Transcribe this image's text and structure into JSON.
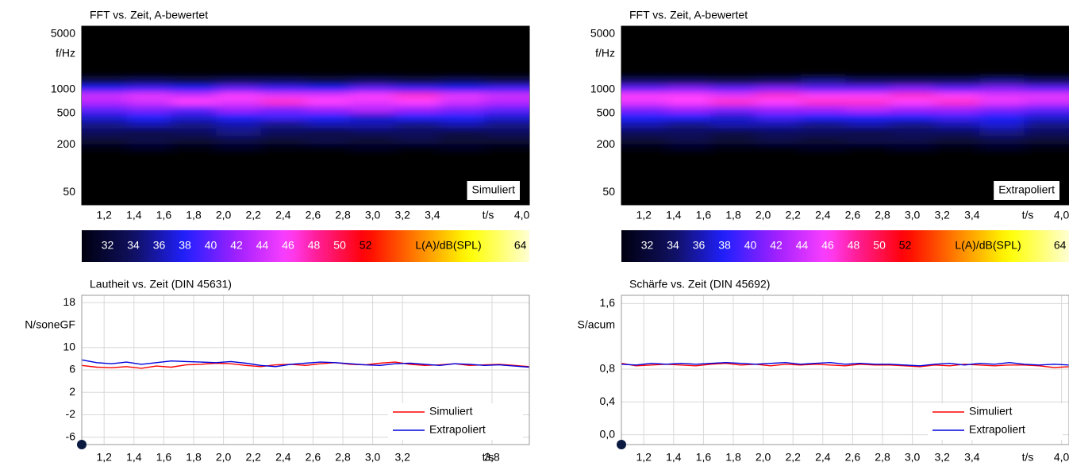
{
  "chart_data": [
    {
      "type": "heatmap",
      "title": "FFT vs. Zeit, A-bewertet",
      "y_label": "f/Hz",
      "x_label": "t/s",
      "annotation": "Simuliert",
      "log_y": true,
      "ylim": [
        35,
        6300
      ],
      "yticks": [
        5000,
        1000,
        500,
        200,
        50
      ],
      "xlim": [
        1.05,
        4.05
      ],
      "xticks": [
        {
          "value": 1.2,
          "label": "1,2"
        },
        {
          "value": 1.4,
          "label": "1,4"
        },
        {
          "value": 1.6,
          "label": "1,6"
        },
        {
          "value": 1.8,
          "label": "1,8"
        },
        {
          "value": 2.0,
          "label": "2,0"
        },
        {
          "value": 2.2,
          "label": "2,2"
        },
        {
          "value": 2.4,
          "label": "2,4"
        },
        {
          "value": 2.6,
          "label": "2,6"
        },
        {
          "value": 2.8,
          "label": "2,8"
        },
        {
          "value": 3.0,
          "label": "3,0"
        },
        {
          "value": 3.2,
          "label": "3,2"
        },
        {
          "value": 3.4,
          "label": "3,4"
        },
        {
          "value": 4.0,
          "label": "4,0"
        }
      ],
      "x": [
        1.2,
        1.5,
        1.8,
        2.1,
        2.4,
        2.7,
        3.0,
        3.3,
        3.6,
        3.9
      ],
      "y": [
        1300,
        1000,
        850,
        700,
        560,
        450,
        360,
        290,
        230,
        180
      ],
      "values": [
        [
          33,
          34,
          33,
          34,
          34,
          33,
          34,
          33,
          34,
          33
        ],
        [
          38,
          39,
          38,
          40,
          39,
          38,
          40,
          39,
          38,
          39
        ],
        [
          44,
          45,
          44,
          46,
          45,
          45,
          46,
          47,
          45,
          44
        ],
        [
          43,
          44,
          46,
          45,
          47,
          46,
          45,
          46,
          44,
          43
        ],
        [
          40,
          41,
          40,
          42,
          41,
          42,
          43,
          42,
          41,
          40
        ],
        [
          37,
          38,
          37,
          38,
          39,
          38,
          37,
          38,
          38,
          37
        ],
        [
          35,
          36,
          35,
          36,
          35,
          36,
          36,
          35,
          36,
          35
        ],
        [
          34,
          33,
          34,
          35,
          34,
          33,
          34,
          34,
          33,
          34
        ],
        [
          32,
          33,
          32,
          33,
          32,
          33,
          32,
          33,
          32,
          32
        ],
        [
          30,
          31,
          30,
          31,
          30,
          30,
          31,
          30,
          31,
          30
        ]
      ],
      "colorbar": {
        "lim": [
          30,
          64.7
        ],
        "ticks": [
          32,
          34,
          36,
          38,
          40,
          42,
          44,
          46,
          48,
          50,
          52,
          64
        ],
        "label": "L(A)/dB(SPL)"
      }
    },
    {
      "type": "heatmap",
      "title": "FFT vs. Zeit, A-bewertet",
      "y_label": "f/Hz",
      "x_label": "t/s",
      "annotation": "Extrapoliert",
      "log_y": true,
      "ylim": [
        35,
        6300
      ],
      "yticks": [
        5000,
        1000,
        500,
        200,
        50
      ],
      "xlim": [
        1.05,
        4.05
      ],
      "xticks": [
        {
          "value": 1.2,
          "label": "1,2"
        },
        {
          "value": 1.4,
          "label": "1,4"
        },
        {
          "value": 1.6,
          "label": "1,6"
        },
        {
          "value": 1.8,
          "label": "1,8"
        },
        {
          "value": 2.0,
          "label": "2,0"
        },
        {
          "value": 2.2,
          "label": "2,2"
        },
        {
          "value": 2.4,
          "label": "2,4"
        },
        {
          "value": 2.6,
          "label": "2,6"
        },
        {
          "value": 2.8,
          "label": "2,8"
        },
        {
          "value": 3.0,
          "label": "3,0"
        },
        {
          "value": 3.2,
          "label": "3,2"
        },
        {
          "value": 3.4,
          "label": "3,4"
        },
        {
          "value": 4.0,
          "label": "4,0"
        }
      ],
      "x": [
        1.2,
        1.5,
        1.8,
        2.1,
        2.4,
        2.7,
        3.0,
        3.3,
        3.6,
        3.9
      ],
      "y": [
        1300,
        1000,
        850,
        700,
        560,
        450,
        360,
        290,
        230,
        180
      ],
      "values": [
        [
          34,
          34,
          33,
          34,
          35,
          34,
          34,
          34,
          35,
          34
        ],
        [
          40,
          41,
          40,
          41,
          40,
          40,
          41,
          40,
          41,
          40
        ],
        [
          46,
          46,
          45,
          47,
          46,
          46,
          47,
          46,
          45,
          45
        ],
        [
          45,
          46,
          47,
          46,
          47,
          47,
          46,
          47,
          45,
          44
        ],
        [
          41,
          42,
          41,
          42,
          42,
          43,
          42,
          42,
          41,
          40
        ],
        [
          38,
          38,
          37,
          39,
          38,
          38,
          38,
          39,
          38,
          37
        ],
        [
          36,
          35,
          36,
          36,
          35,
          36,
          35,
          36,
          37,
          35
        ],
        [
          34,
          34,
          33,
          34,
          34,
          33,
          34,
          34,
          35,
          34
        ],
        [
          32,
          33,
          32,
          33,
          32,
          33,
          33,
          32,
          33,
          32
        ],
        [
          30,
          31,
          30,
          30,
          31,
          30,
          31,
          30,
          31,
          30
        ]
      ],
      "colorbar": {
        "lim": [
          30,
          64.7
        ],
        "ticks": [
          32,
          34,
          36,
          38,
          40,
          42,
          44,
          46,
          48,
          50,
          52,
          64
        ],
        "label": "L(A)/dB(SPL)"
      }
    },
    {
      "type": "line",
      "title": "Lautheit vs. Zeit (DIN 45631)",
      "y_label": "N/soneGF",
      "x_label": "t/s",
      "ylim": [
        -7.3,
        19.3
      ],
      "yticks": [
        18,
        10,
        6,
        2,
        -2,
        -6
      ],
      "grid": true,
      "legend": "lower right",
      "xlim": [
        1.05,
        4.05
      ],
      "xticks": [
        {
          "value": 1.2,
          "label": "1,2"
        },
        {
          "value": 1.4,
          "label": "1,4"
        },
        {
          "value": 1.6,
          "label": "1,6"
        },
        {
          "value": 1.8,
          "label": "1,8"
        },
        {
          "value": 2.0,
          "label": "2,0"
        },
        {
          "value": 2.2,
          "label": "2,2"
        },
        {
          "value": 2.4,
          "label": "2,4"
        },
        {
          "value": 2.6,
          "label": "2,6"
        },
        {
          "value": 2.8,
          "label": "2,8"
        },
        {
          "value": 3.0,
          "label": "3,0"
        },
        {
          "value": 3.2,
          "label": "3,2"
        },
        {
          "value": 3.8,
          "label": "3,8"
        }
      ],
      "x": [
        1.05,
        1.15,
        1.25,
        1.35,
        1.45,
        1.55,
        1.65,
        1.75,
        1.85,
        1.95,
        2.05,
        2.15,
        2.25,
        2.35,
        2.45,
        2.55,
        2.65,
        2.75,
        2.85,
        2.95,
        3.05,
        3.15,
        3.25,
        3.35,
        3.45,
        3.55,
        3.65,
        3.75,
        3.85,
        3.95,
        4.05
      ],
      "series": [
        {
          "name": "Simuliert",
          "color": "#ff0000",
          "values": [
            6.8,
            6.5,
            6.4,
            6.6,
            6.3,
            6.7,
            6.5,
            6.9,
            7.0,
            7.2,
            7.1,
            6.8,
            6.6,
            6.9,
            7.0,
            6.8,
            7.1,
            7.3,
            7.0,
            6.9,
            7.2,
            7.4,
            7.0,
            6.8,
            6.9,
            7.1,
            6.8,
            6.9,
            7.0,
            6.8,
            6.6
          ]
        },
        {
          "name": "Extrapoliert",
          "color": "#0000dd",
          "values": [
            7.8,
            7.3,
            7.1,
            7.4,
            7.0,
            7.3,
            7.6,
            7.5,
            7.4,
            7.3,
            7.5,
            7.2,
            6.8,
            6.6,
            7.0,
            7.2,
            7.4,
            7.3,
            7.1,
            6.9,
            6.8,
            7.1,
            7.2,
            7.0,
            6.8,
            7.1,
            7.0,
            6.8,
            6.9,
            6.7,
            6.5
          ]
        }
      ]
    },
    {
      "type": "line",
      "title": "Schärfe vs. Zeit (DIN 45692)",
      "y_label": "S/acum",
      "x_label": "t/s",
      "ylim": [
        -0.12,
        1.7
      ],
      "yticks": [
        {
          "value": 1.6,
          "label": "1,6"
        },
        {
          "value": 0.8,
          "label": "0,8"
        },
        {
          "value": 0.4,
          "label": "0,4"
        },
        {
          "value": 0.0,
          "label": "0,0"
        }
      ],
      "grid": true,
      "legend": "lower right",
      "xlim": [
        1.05,
        4.05
      ],
      "xticks": [
        {
          "value": 1.2,
          "label": "1,2"
        },
        {
          "value": 1.4,
          "label": "1,4"
        },
        {
          "value": 1.6,
          "label": "1,6"
        },
        {
          "value": 1.8,
          "label": "1,8"
        },
        {
          "value": 2.0,
          "label": "2,0"
        },
        {
          "value": 2.2,
          "label": "2,2"
        },
        {
          "value": 2.4,
          "label": "2,4"
        },
        {
          "value": 2.6,
          "label": "2,6"
        },
        {
          "value": 2.8,
          "label": "2,8"
        },
        {
          "value": 3.0,
          "label": "3,0"
        },
        {
          "value": 3.2,
          "label": "3,2"
        },
        {
          "value": 3.4,
          "label": "3,4"
        },
        {
          "value": 4.0,
          "label": "4,0"
        }
      ],
      "x": [
        1.05,
        1.15,
        1.25,
        1.35,
        1.45,
        1.55,
        1.65,
        1.75,
        1.85,
        1.95,
        2.05,
        2.15,
        2.25,
        2.35,
        2.45,
        2.55,
        2.65,
        2.75,
        2.85,
        2.95,
        3.05,
        3.15,
        3.25,
        3.35,
        3.45,
        3.55,
        3.65,
        3.75,
        3.85,
        3.95,
        4.05
      ],
      "series": [
        {
          "name": "Simuliert",
          "color": "#ff0000",
          "values": [
            0.87,
            0.84,
            0.85,
            0.86,
            0.85,
            0.84,
            0.86,
            0.87,
            0.85,
            0.86,
            0.84,
            0.86,
            0.85,
            0.86,
            0.85,
            0.84,
            0.86,
            0.85,
            0.85,
            0.84,
            0.83,
            0.85,
            0.84,
            0.86,
            0.85,
            0.84,
            0.85,
            0.85,
            0.84,
            0.82,
            0.83
          ]
        },
        {
          "name": "Extrapoliert",
          "color": "#0000dd",
          "values": [
            0.86,
            0.85,
            0.87,
            0.86,
            0.87,
            0.86,
            0.87,
            0.88,
            0.87,
            0.86,
            0.87,
            0.88,
            0.86,
            0.87,
            0.88,
            0.86,
            0.87,
            0.86,
            0.86,
            0.85,
            0.84,
            0.86,
            0.87,
            0.85,
            0.87,
            0.86,
            0.88,
            0.86,
            0.85,
            0.86,
            0.85
          ]
        }
      ]
    }
  ]
}
